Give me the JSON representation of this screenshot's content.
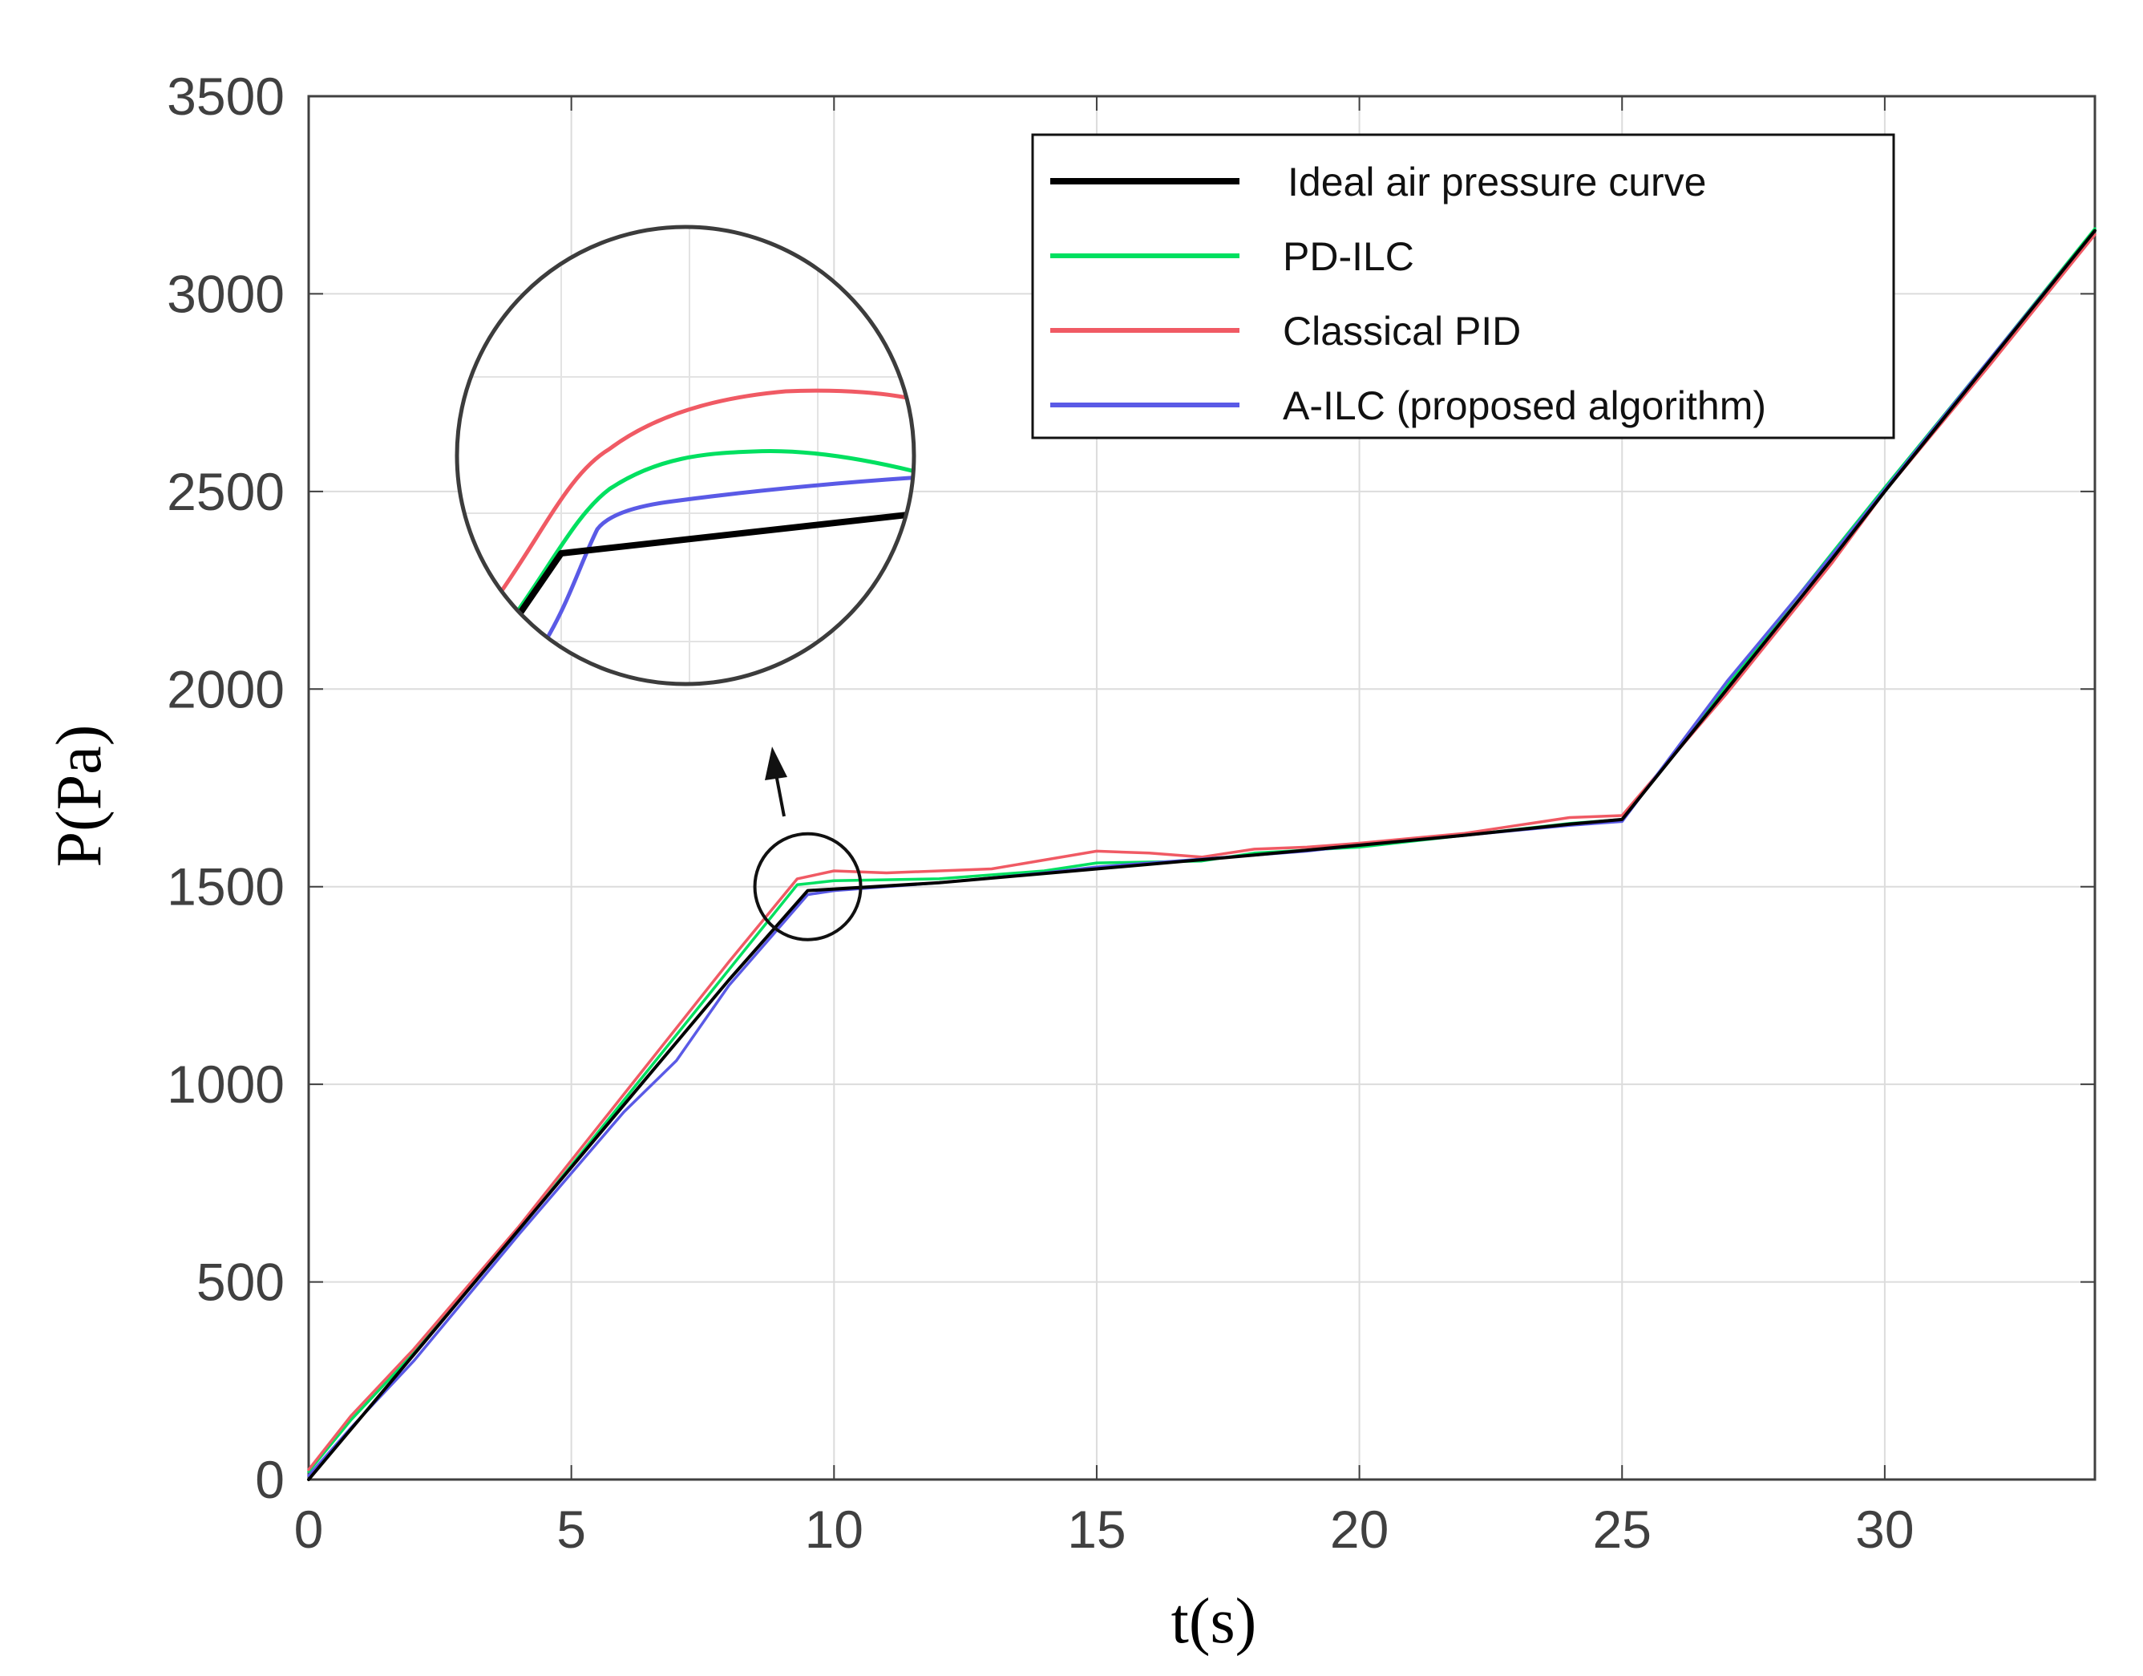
{
  "chart_data": {
    "type": "line",
    "title": "",
    "xlabel": "t(s)",
    "ylabel": "P(Pa)",
    "xlim": [
      0,
      34
    ],
    "ylim": [
      0,
      3500
    ],
    "xticks": [
      0,
      5,
      10,
      15,
      20,
      25,
      30
    ],
    "yticks": [
      0,
      500,
      1000,
      1500,
      2000,
      2500,
      3000,
      3500
    ],
    "grid": true,
    "legend_position": "top-right",
    "inset": "zoomed view of the knee near t=9.5 s",
    "series": [
      {
        "name": "Ideal air pressure curve",
        "color": "#000000",
        "x": [
          0,
          2,
          4,
          6,
          8,
          9.5,
          12,
          15,
          18,
          20,
          22,
          24,
          25,
          27,
          29,
          30,
          32,
          34
        ],
        "y": [
          0,
          316,
          632,
          948,
          1264,
          1490,
          1510,
          1545,
          1580,
          1605,
          1630,
          1658,
          1670,
          2000,
          2330,
          2500,
          2830,
          3160
        ]
      },
      {
        "name": "PD-ILC",
        "color": "#00e060",
        "x": [
          0,
          0.8,
          2,
          4,
          6,
          8,
          9.3,
          10,
          12,
          14,
          15,
          17,
          18,
          20,
          22,
          24,
          25,
          27,
          29,
          30,
          32,
          34
        ],
        "y": [
          20,
          150,
          320,
          630,
          960,
          1290,
          1505,
          1515,
          1520,
          1540,
          1560,
          1565,
          1585,
          1600,
          1630,
          1660,
          1670,
          2010,
          2345,
          2510,
          2835,
          3165
        ]
      },
      {
        "name": "Classical PID",
        "color": "#f05a64",
        "x": [
          0,
          0.8,
          2,
          4,
          6,
          8,
          9.3,
          10,
          11,
          13,
          15,
          16,
          17,
          18,
          19,
          20,
          22,
          24,
          25,
          27,
          29,
          30,
          32,
          34
        ],
        "y": [
          25,
          160,
          330,
          640,
          975,
          1310,
          1520,
          1540,
          1535,
          1545,
          1590,
          1585,
          1575,
          1595,
          1600,
          1610,
          1635,
          1675,
          1680,
          1990,
          2320,
          2500,
          2820,
          3150
        ]
      },
      {
        "name": "A-ILC (proposed algorithm)",
        "color": "#5a5ae6",
        "x": [
          0,
          0.8,
          2,
          4,
          6,
          7,
          8,
          9.5,
          10,
          12,
          14,
          15,
          17,
          19,
          20,
          22,
          24,
          25,
          27,
          29,
          30,
          32,
          34
        ],
        "y": [
          10,
          130,
          300,
          620,
          930,
          1060,
          1250,
          1480,
          1490,
          1510,
          1535,
          1550,
          1570,
          1590,
          1605,
          1630,
          1655,
          1665,
          2020,
          2340,
          2505,
          2835,
          3160
        ]
      }
    ]
  }
}
